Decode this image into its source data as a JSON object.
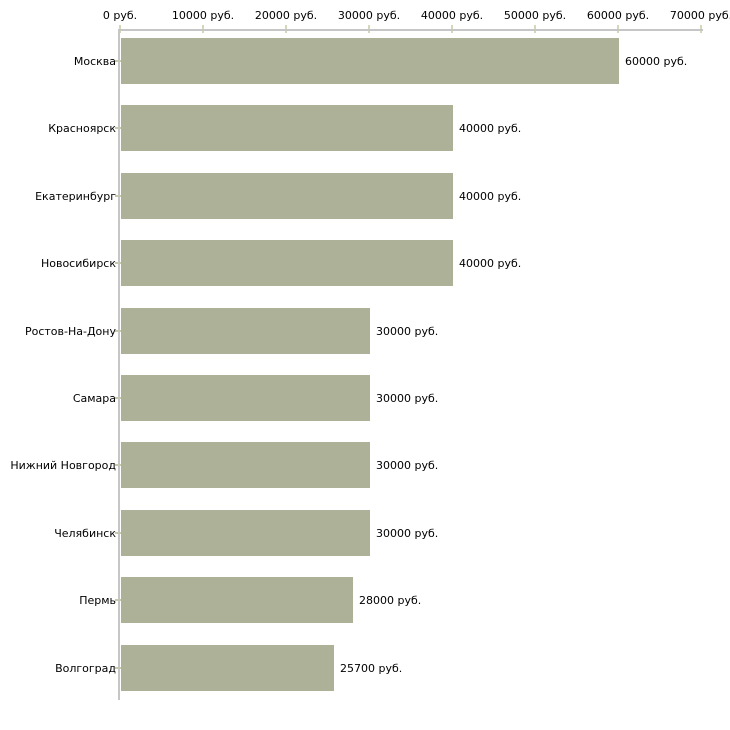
{
  "chart_data": {
    "type": "bar",
    "orientation": "horizontal",
    "title": "",
    "xlabel": "",
    "ylabel": "",
    "unit": "руб.",
    "grid": false,
    "legend": null,
    "xlim": [
      0,
      70000
    ],
    "x_ticks": [
      0,
      10000,
      20000,
      30000,
      40000,
      50000,
      60000,
      70000
    ],
    "x_tick_labels": [
      "0 руб.",
      "10000 руб.",
      "20000 руб.",
      "30000 руб.",
      "40000 руб.",
      "50000 руб.",
      "60000 руб.",
      "70000 руб."
    ],
    "categories": [
      "Москва",
      "Красноярск",
      "Екатеринбург",
      "Новосибирск",
      "Ростов-На-Дону",
      "Самара",
      "Нижний Новгород",
      "Челябинск",
      "Пермь",
      "Волгоград"
    ],
    "values": [
      60000,
      40000,
      40000,
      40000,
      30000,
      30000,
      30000,
      30000,
      28000,
      25700
    ],
    "value_labels": [
      "60000 руб.",
      "40000 руб.",
      "40000 руб.",
      "40000 руб.",
      "30000 руб.",
      "30000 руб.",
      "30000 руб.",
      "30000 руб.",
      "28000 руб.",
      "25700 руб."
    ],
    "colors": {
      "bar": "#acb198",
      "axis": "#c6c6c6",
      "tick": "#d5d8b8",
      "ytick": "#c6c9b0",
      "text": "#000000",
      "background": "#ffffff"
    }
  }
}
